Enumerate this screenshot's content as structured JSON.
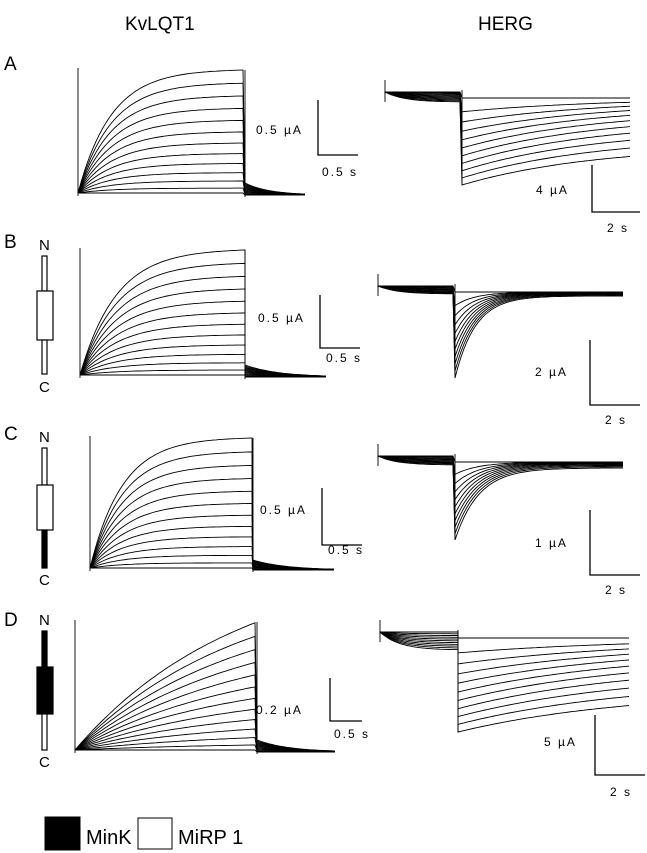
{
  "columns": {
    "left": "KvLQT1",
    "right": "HERG"
  },
  "panels": [
    {
      "letter": "A",
      "construct": null,
      "kvlqt1_scale": {
        "current": "0.5 µA",
        "time": "0.5 s"
      },
      "herg_scale": {
        "current": "4 µA",
        "time": "2 s"
      }
    },
    {
      "letter": "B",
      "construct": {
        "n": "N",
        "c": "C",
        "n_segment": "MiRP 1",
        "core": "MiRP 1",
        "c_segment": "MiRP 1"
      },
      "kvlqt1_scale": {
        "current": "0.5 µA",
        "time": "0.5 s"
      },
      "herg_scale": {
        "current": "2 µA",
        "time": "2 s"
      }
    },
    {
      "letter": "C",
      "construct": {
        "n": "N",
        "c": "C",
        "n_segment": "MiRP 1",
        "core": "MiRP 1",
        "c_segment": "MinK"
      },
      "kvlqt1_scale": {
        "current": "0.5 µA",
        "time": "0.5 s"
      },
      "herg_scale": {
        "current": "1 µA",
        "time": "2 s"
      }
    },
    {
      "letter": "D",
      "construct": {
        "n": "N",
        "c": "C",
        "n_segment": "MinK",
        "core": "MinK",
        "c_segment": "MiRP 1"
      },
      "kvlqt1_scale": {
        "current": "0.2 µA",
        "time": "0.5 s"
      },
      "herg_scale": {
        "current": "5 µA",
        "time": "2 s"
      }
    }
  ],
  "legend": [
    {
      "label": "MinK",
      "color": "#000000"
    },
    {
      "label": "MiRP 1",
      "color": "#ffffff"
    }
  ]
}
